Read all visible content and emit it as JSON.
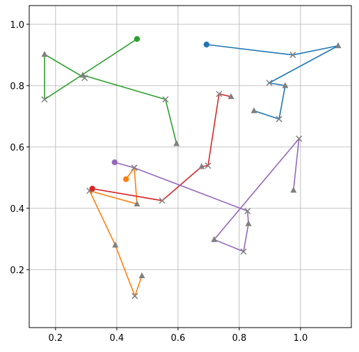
{
  "chart_data": {
    "type": "line",
    "xlim": [
      0.114,
      1.166
    ],
    "ylim": [
      0.011,
      1.061
    ],
    "xticks": [
      0.2,
      0.4,
      0.6,
      0.8,
      {
        "value": 1.0,
        "label": "1.0"
      }
    ],
    "yticks": [
      0.2,
      0.4,
      0.6,
      0.8,
      {
        "value": 1.0,
        "label": "1.0"
      }
    ],
    "grid": true,
    "marker_color": "#808080",
    "series": [
      {
        "color": "#1f77b4",
        "markers": [
          "o",
          "x",
          "^",
          "x",
          "^",
          "x",
          "^"
        ],
        "x": [
          0.693,
          0.975,
          1.123,
          0.898,
          0.95,
          0.93,
          0.848
        ],
        "values": [
          0.934,
          0.9,
          0.93,
          0.809,
          0.8,
          0.691,
          0.718
        ]
      },
      {
        "color": "#ff7f0e",
        "markers": [
          "o",
          "x",
          "^",
          "x",
          "^",
          "x",
          "^"
        ],
        "x": [
          0.43,
          0.457,
          0.466,
          0.311,
          0.395,
          0.459,
          0.482
        ],
        "values": [
          0.495,
          0.532,
          0.414,
          0.457,
          0.28,
          0.114,
          0.18
        ]
      },
      {
        "color": "#2ca02c",
        "markers": [
          "o",
          "x",
          "^",
          "x",
          "^",
          "x",
          "^"
        ],
        "x": [
          0.466,
          0.164,
          0.164,
          0.295,
          0.289,
          0.559,
          0.595
        ],
        "values": [
          0.952,
          0.755,
          0.902,
          0.825,
          0.834,
          0.755,
          0.611
        ]
      },
      {
        "color": "#d62728",
        "markers": [
          "o",
          "x",
          "^",
          "x",
          "x",
          "^"
        ],
        "x": [
          0.32,
          0.548,
          0.677,
          0.698,
          0.734,
          0.773
        ],
        "values": [
          0.464,
          0.425,
          0.536,
          0.539,
          0.773,
          0.764
        ]
      },
      {
        "color": "#9467bd",
        "markers": [
          "o",
          "x",
          "x",
          "^",
          "x",
          "^",
          "x",
          "^"
        ],
        "x": [
          0.393,
          0.457,
          0.827,
          0.83,
          0.814,
          0.718,
          0.995,
          0.977
        ],
        "values": [
          0.55,
          0.532,
          0.391,
          0.35,
          0.259,
          0.298,
          0.627,
          0.459
        ]
      }
    ]
  }
}
